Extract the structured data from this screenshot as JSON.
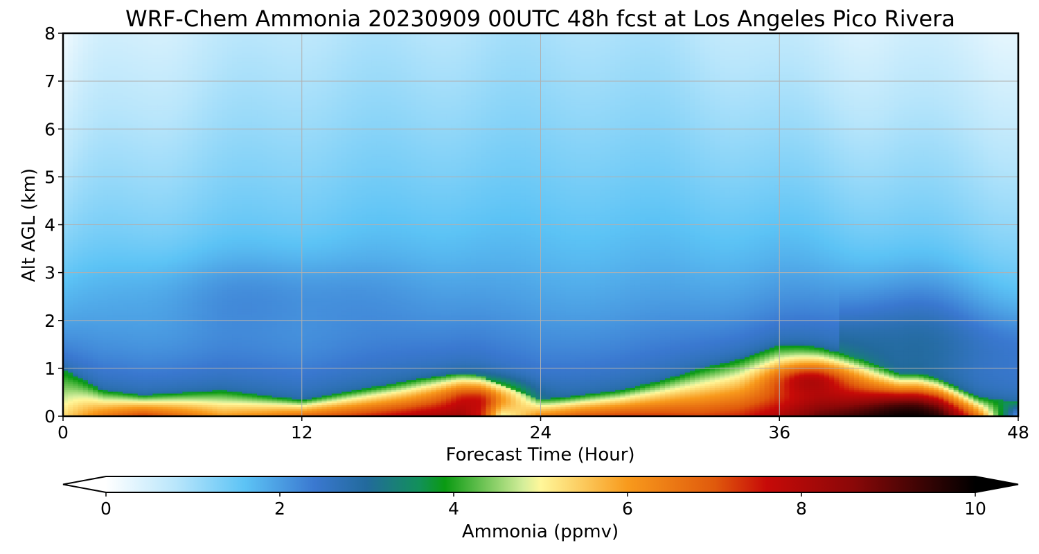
{
  "chart_data": {
    "type": "heatmap",
    "title": "WRF-Chem Ammonia  20230909 00UTC 48h fcst at Los Angeles Pico Rivera",
    "xlabel": "Forecast Time (Hour)",
    "ylabel": "Alt AGL (km)",
    "xlim": [
      0,
      48
    ],
    "ylim": [
      0,
      8
    ],
    "xticks": [
      0,
      12,
      24,
      36,
      48
    ],
    "yticks": [
      0,
      1,
      2,
      3,
      4,
      5,
      6,
      7,
      8
    ],
    "grid": true,
    "colorbar": {
      "label": "Ammonia  (ppmv)",
      "range": [
        0,
        10
      ],
      "ticks": [
        0,
        2,
        4,
        6,
        8,
        10
      ],
      "extend": "both",
      "colors": [
        {
          "v": 0,
          "c": "#ffffff"
        },
        {
          "v": 0.8,
          "c": "#b9e6fb"
        },
        {
          "v": 1.6,
          "c": "#5cc3f5"
        },
        {
          "v": 2.4,
          "c": "#3a78d0"
        },
        {
          "v": 3.0,
          "c": "#226a9c"
        },
        {
          "v": 3.6,
          "c": "#12905a"
        },
        {
          "v": 3.9,
          "c": "#0a9a12"
        },
        {
          "v": 4.8,
          "c": "#d4ee9a"
        },
        {
          "v": 5.0,
          "c": "#fff79a"
        },
        {
          "v": 6.0,
          "c": "#f89a1c"
        },
        {
          "v": 7.0,
          "c": "#e05a0c"
        },
        {
          "v": 7.6,
          "c": "#c70a08"
        },
        {
          "v": 8.6,
          "c": "#8a0808"
        },
        {
          "v": 9.4,
          "c": "#3a0404"
        },
        {
          "v": 10,
          "c": "#000000"
        }
      ]
    },
    "hours": [
      0,
      2,
      4,
      6,
      8,
      10,
      12,
      14,
      16,
      18,
      20,
      21,
      22,
      24,
      26,
      28,
      30,
      32,
      34,
      36,
      37,
      38,
      40,
      42,
      43,
      44,
      46,
      48
    ],
    "surface_ppmv": [
      5.3,
      6.5,
      7.3,
      6.7,
      6.0,
      6.3,
      6.8,
      7.2,
      7.6,
      8.0,
      8.2,
      7.2,
      4.0,
      6.3,
      7.0,
      7.3,
      7.3,
      7.2,
      7.4,
      8.0,
      8.5,
      9.0,
      9.4,
      9.8,
      9.8,
      9.4,
      6.5,
      1.8
    ],
    "boundary_layer_top_km": [
      1.0,
      0.55,
      0.45,
      0.5,
      0.55,
      0.45,
      0.35,
      0.5,
      0.65,
      0.8,
      0.9,
      0.85,
      0.65,
      0.35,
      0.45,
      0.55,
      0.75,
      1.0,
      1.2,
      1.5,
      1.5,
      1.45,
      1.2,
      0.9,
      0.9,
      0.8,
      0.4,
      0.3
    ],
    "features": [
      {
        "type": "peak",
        "x_hour": 21,
        "z_km": 0.35,
        "ppmv": 8.6
      },
      {
        "type": "peak",
        "x_hour": 37.5,
        "z_km": 0.75,
        "ppmv": 9.0
      },
      {
        "type": "peak",
        "x_hour": 42.5,
        "z_km": 0.08,
        "ppmv": 10.0
      }
    ]
  }
}
